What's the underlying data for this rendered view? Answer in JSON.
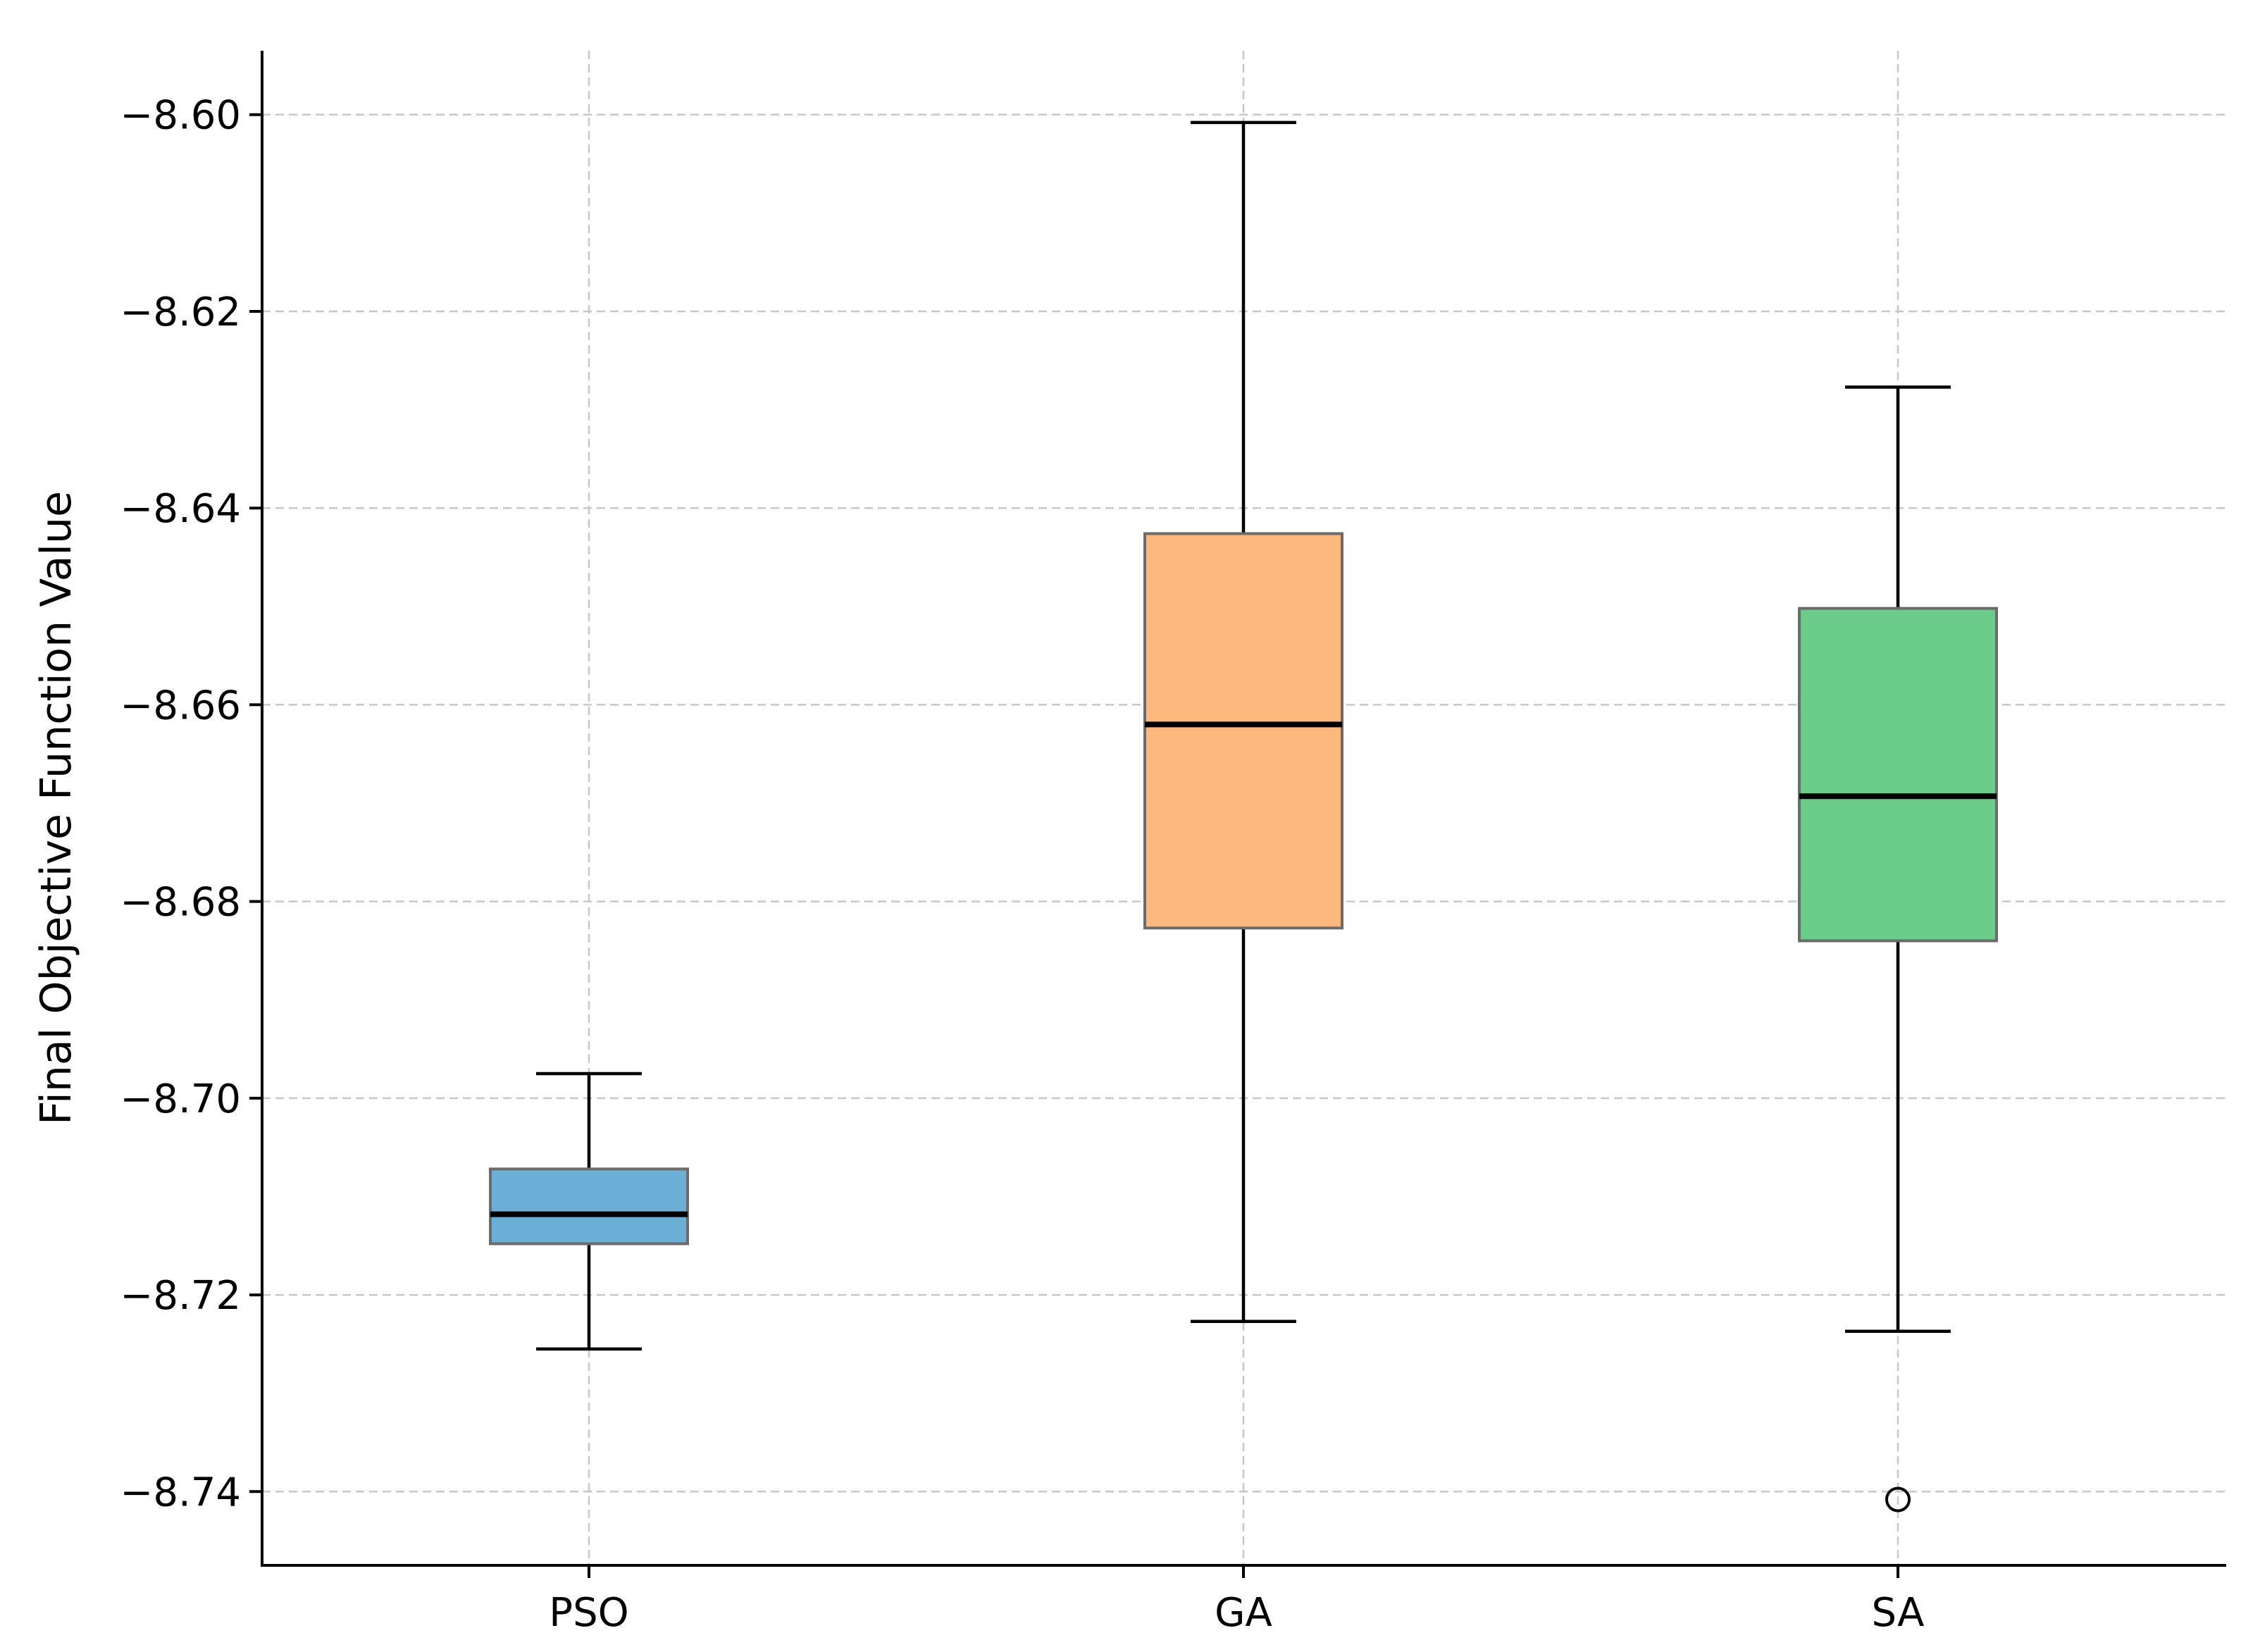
{
  "chart_data": {
    "type": "box",
    "title": "",
    "xlabel": "",
    "ylabel": "Final Objective Function Value",
    "ylim": [
      -8.7475,
      -8.5935
    ],
    "yticks": [
      -8.6,
      -8.62,
      -8.64,
      -8.66,
      -8.68,
      -8.7,
      -8.72,
      -8.74
    ],
    "ytick_labels": [
      "−8.60",
      "−8.62",
      "−8.64",
      "−8.66",
      "−8.68",
      "−8.70",
      "−8.72",
      "−8.74"
    ],
    "grid": true,
    "categories": [
      "PSO",
      "GA",
      "SA"
    ],
    "boxes": [
      {
        "category": "PSO",
        "whisker_low": -8.7255,
        "q1": -8.7148,
        "median": -8.7118,
        "q3": -8.7072,
        "whisker_high": -8.6975,
        "outliers": [],
        "color": "#6BAED6"
      },
      {
        "category": "GA",
        "whisker_low": -8.7227,
        "q1": -8.6827,
        "median": -8.662,
        "q3": -8.6426,
        "whisker_high": -8.6008,
        "outliers": [],
        "color": "#FDB97D"
      },
      {
        "category": "SA",
        "whisker_low": -8.7237,
        "q1": -8.684,
        "median": -8.6693,
        "q3": -8.6502,
        "whisker_high": -8.6277,
        "outliers": [
          -8.7408
        ],
        "color": "#6ACC88"
      }
    ]
  }
}
